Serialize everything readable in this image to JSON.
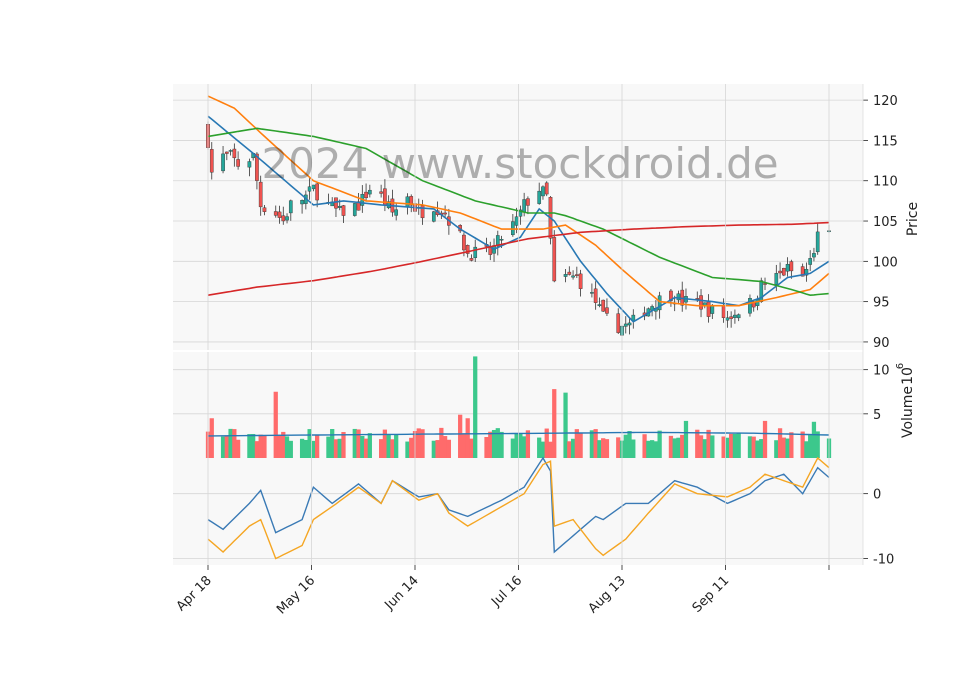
{
  "watermark": "2024 www.stockdroid.de",
  "colors": {
    "up": "#26a69a",
    "down": "#ef5350",
    "vol_up": "#3cc88c",
    "vol_down": "#ff6b6b",
    "ma_blue": "#2878b4",
    "ma_orange": "#ff7f0e",
    "ma_green": "#2ca02c",
    "ma_red": "#d62728",
    "osc_orange": "#f5a623",
    "osc_blue": "#3a7ab5",
    "panel_bg": "#f8f8f8",
    "grid": "#d6d6d6"
  },
  "chart_data": [
    {
      "type": "candlestick",
      "panel": "price",
      "ylabel": "Price",
      "ylim": [
        89,
        122
      ],
      "yticks": [
        90,
        95,
        100,
        105,
        110,
        115,
        120
      ],
      "grid": true,
      "x_start": "2024-04-18",
      "x_end": "2024-09-30",
      "xtick_labels": [
        "Apr 18",
        "May 16",
        "Jun 14",
        "Jul 16",
        "Aug 13",
        "Sep 11"
      ],
      "close_anchors": [
        [
          "2024-04-18",
          115
        ],
        [
          "2024-04-19",
          111
        ],
        [
          "2024-04-22",
          113
        ],
        [
          "2024-04-24",
          113
        ],
        [
          "2024-04-26",
          112
        ],
        [
          "2024-04-30",
          113
        ],
        [
          "2024-05-02",
          107
        ],
        [
          "2024-05-06",
          106
        ],
        [
          "2024-05-08",
          105
        ],
        [
          "2024-05-10",
          107
        ],
        [
          "2024-05-14",
          108
        ],
        [
          "2024-05-16",
          109
        ],
        [
          "2024-05-20",
          107
        ],
        [
          "2024-05-23",
          106
        ],
        [
          "2024-05-28",
          107
        ],
        [
          "2024-05-31",
          109
        ],
        [
          "2024-06-03",
          108
        ],
        [
          "2024-06-06",
          106
        ],
        [
          "2024-06-10",
          108
        ],
        [
          "2024-06-13",
          106
        ],
        [
          "2024-06-17",
          107
        ],
        [
          "2024-06-20",
          106
        ],
        [
          "2024-06-24",
          103
        ],
        [
          "2024-06-26",
          101
        ],
        [
          "2024-06-28",
          101
        ],
        [
          "2024-07-02",
          101
        ],
        [
          "2024-07-05",
          103
        ],
        [
          "2024-07-09",
          105
        ],
        [
          "2024-07-11",
          107
        ],
        [
          "2024-07-15",
          109
        ],
        [
          "2024-07-17",
          108
        ],
        [
          "2024-07-19",
          97
        ],
        [
          "2024-07-22",
          98
        ],
        [
          "2024-07-25",
          98
        ],
        [
          "2024-07-30",
          95
        ],
        [
          "2024-08-01",
          93
        ],
        [
          "2024-08-05",
          92
        ],
        [
          "2024-08-08",
          92
        ],
        [
          "2024-08-12",
          94
        ],
        [
          "2024-08-15",
          95
        ],
        [
          "2024-08-19",
          96
        ],
        [
          "2024-08-22",
          95
        ],
        [
          "2024-08-26",
          95
        ],
        [
          "2024-08-29",
          94
        ],
        [
          "2024-09-03",
          93
        ],
        [
          "2024-09-06",
          94
        ],
        [
          "2024-09-10",
          95
        ],
        [
          "2024-09-12",
          97
        ],
        [
          "2024-09-16",
          98
        ],
        [
          "2024-09-19",
          99
        ],
        [
          "2024-09-23",
          98
        ],
        [
          "2024-09-25",
          100
        ],
        [
          "2024-09-27",
          103
        ],
        [
          "2024-09-30",
          103
        ]
      ],
      "moving_averages": [
        {
          "color_key": "ma_blue",
          "points": [
            [
              "2024-04-18",
              118
            ],
            [
              "2024-05-01",
              113
            ],
            [
              "2024-05-16",
              107
            ],
            [
              "2024-05-24",
              107.5
            ],
            [
              "2024-06-03",
              107
            ],
            [
              "2024-06-17",
              106.5
            ],
            [
              "2024-06-24",
              104
            ],
            [
              "2024-07-03",
              101.5
            ],
            [
              "2024-07-10",
              103
            ],
            [
              "2024-07-15",
              106.5
            ],
            [
              "2024-07-19",
              105
            ],
            [
              "2024-07-26",
              100
            ],
            [
              "2024-08-02",
              96
            ],
            [
              "2024-08-09",
              92.5
            ],
            [
              "2024-08-20",
              95.5
            ],
            [
              "2024-08-30",
              95
            ],
            [
              "2024-09-06",
              94.5
            ],
            [
              "2024-09-12",
              95.5
            ],
            [
              "2024-09-19",
              98
            ],
            [
              "2024-09-25",
              98.5
            ],
            [
              "2024-09-30",
              100
            ]
          ]
        },
        {
          "color_key": "ma_orange",
          "points": [
            [
              "2024-04-18",
              120.5
            ],
            [
              "2024-04-25",
              119
            ],
            [
              "2024-05-03",
              115.5
            ],
            [
              "2024-05-16",
              110
            ],
            [
              "2024-05-30",
              107.5
            ],
            [
              "2024-06-14",
              107
            ],
            [
              "2024-06-24",
              106
            ],
            [
              "2024-07-05",
              104
            ],
            [
              "2024-07-16",
              104
            ],
            [
              "2024-07-22",
              104.5
            ],
            [
              "2024-07-30",
              102
            ],
            [
              "2024-08-06",
              99
            ],
            [
              "2024-08-16",
              95
            ],
            [
              "2024-08-26",
              94.5
            ],
            [
              "2024-09-06",
              94.5
            ],
            [
              "2024-09-16",
              95.5
            ],
            [
              "2024-09-25",
              96.5
            ],
            [
              "2024-09-30",
              98.5
            ]
          ]
        },
        {
          "color_key": "ma_green",
          "points": [
            [
              "2024-04-18",
              115.5
            ],
            [
              "2024-05-01",
              116.5
            ],
            [
              "2024-05-16",
              115.5
            ],
            [
              "2024-05-30",
              114
            ],
            [
              "2024-06-14",
              110
            ],
            [
              "2024-06-28",
              107.5
            ],
            [
              "2024-07-12",
              106
            ],
            [
              "2024-07-20",
              106
            ],
            [
              "2024-08-01",
              104
            ],
            [
              "2024-08-16",
              100.5
            ],
            [
              "2024-08-30",
              98
            ],
            [
              "2024-09-12",
              97.5
            ],
            [
              "2024-09-20",
              96.5
            ],
            [
              "2024-09-25",
              95.8
            ],
            [
              "2024-09-30",
              96
            ]
          ]
        },
        {
          "color_key": "ma_red",
          "points": [
            [
              "2024-04-18",
              95.8
            ],
            [
              "2024-05-01",
              96.8
            ],
            [
              "2024-05-16",
              97.6
            ],
            [
              "2024-06-01",
              98.8
            ],
            [
              "2024-06-14",
              100
            ],
            [
              "2024-06-28",
              101.4
            ],
            [
              "2024-07-12",
              102.8
            ],
            [
              "2024-07-26",
              103.6
            ],
            [
              "2024-08-09",
              104
            ],
            [
              "2024-08-23",
              104.3
            ],
            [
              "2024-09-06",
              104.5
            ],
            [
              "2024-09-20",
              104.6
            ],
            [
              "2024-09-30",
              104.8
            ]
          ]
        }
      ]
    },
    {
      "type": "bar",
      "panel": "volume",
      "ylabel": "Volume",
      "unit_exponent": "6",
      "ylim": [
        0,
        12
      ],
      "yticks": [
        5,
        10
      ],
      "spikes": [
        [
          "2024-04-19",
          4.5
        ],
        [
          "2024-05-06",
          7.5
        ],
        [
          "2024-06-24",
          4.9
        ],
        [
          "2024-06-26",
          4.5
        ],
        [
          "2024-06-28",
          11.5
        ],
        [
          "2024-07-19",
          7.8
        ],
        [
          "2024-07-22",
          7.4
        ],
        [
          "2024-08-23",
          4.2
        ],
        [
          "2024-09-13",
          4.2
        ],
        [
          "2024-09-26",
          4.1
        ]
      ],
      "baseline_level": 2.3,
      "average_line": [
        [
          "2024-04-18",
          2.5
        ],
        [
          "2024-05-15",
          2.6
        ],
        [
          "2024-06-14",
          2.7
        ],
        [
          "2024-07-16",
          2.8
        ],
        [
          "2024-08-13",
          2.9
        ],
        [
          "2024-09-11",
          2.8
        ],
        [
          "2024-09-30",
          2.6
        ]
      ]
    },
    {
      "type": "line",
      "panel": "oscillator",
      "ylim": [
        -11,
        5.5
      ],
      "yticks": [
        -10,
        0
      ],
      "series": [
        {
          "color_key": "osc_blue",
          "points": [
            [
              "2024-04-18",
              -4
            ],
            [
              "2024-04-22",
              -5.5
            ],
            [
              "2024-04-29",
              -1.5
            ],
            [
              "2024-05-02",
              0.5
            ],
            [
              "2024-05-06",
              -6
            ],
            [
              "2024-05-13",
              -4
            ],
            [
              "2024-05-16",
              1
            ],
            [
              "2024-05-21",
              -1.5
            ],
            [
              "2024-05-28",
              1.5
            ],
            [
              "2024-06-03",
              -1.5
            ],
            [
              "2024-06-06",
              2
            ],
            [
              "2024-06-13",
              -0.5
            ],
            [
              "2024-06-18",
              0
            ],
            [
              "2024-06-21",
              -2.5
            ],
            [
              "2024-06-26",
              -3.5
            ],
            [
              "2024-07-05",
              -1
            ],
            [
              "2024-07-11",
              1
            ],
            [
              "2024-07-16",
              5.5
            ],
            [
              "2024-07-18",
              3.5
            ],
            [
              "2024-07-19",
              -9
            ],
            [
              "2024-07-24",
              -6.5
            ],
            [
              "2024-07-30",
              -3.5
            ],
            [
              "2024-08-01",
              -4
            ],
            [
              "2024-08-07",
              -1.5
            ],
            [
              "2024-08-13",
              -1.5
            ],
            [
              "2024-08-20",
              2
            ],
            [
              "2024-08-26",
              1
            ],
            [
              "2024-09-03",
              -1.5
            ],
            [
              "2024-09-09",
              0
            ],
            [
              "2024-09-13",
              2
            ],
            [
              "2024-09-18",
              3
            ],
            [
              "2024-09-23",
              0
            ],
            [
              "2024-09-27",
              4
            ],
            [
              "2024-09-30",
              2.5
            ]
          ]
        },
        {
          "color_key": "osc_orange",
          "points": [
            [
              "2024-04-18",
              -7
            ],
            [
              "2024-04-22",
              -9
            ],
            [
              "2024-04-29",
              -5
            ],
            [
              "2024-05-02",
              -4
            ],
            [
              "2024-05-06",
              -10
            ],
            [
              "2024-05-13",
              -8
            ],
            [
              "2024-05-16",
              -4
            ],
            [
              "2024-05-21",
              -2
            ],
            [
              "2024-05-28",
              1
            ],
            [
              "2024-06-03",
              -1.5
            ],
            [
              "2024-06-06",
              2
            ],
            [
              "2024-06-13",
              -1
            ],
            [
              "2024-06-18",
              0
            ],
            [
              "2024-06-21",
              -3
            ],
            [
              "2024-06-26",
              -5
            ],
            [
              "2024-07-05",
              -2
            ],
            [
              "2024-07-11",
              0
            ],
            [
              "2024-07-16",
              4.5
            ],
            [
              "2024-07-18",
              5
            ],
            [
              "2024-07-19",
              -5
            ],
            [
              "2024-07-24",
              -4
            ],
            [
              "2024-07-30",
              -8.5
            ],
            [
              "2024-08-01",
              -9.5
            ],
            [
              "2024-08-07",
              -7
            ],
            [
              "2024-08-13",
              -3
            ],
            [
              "2024-08-20",
              1.5
            ],
            [
              "2024-08-26",
              0
            ],
            [
              "2024-09-03",
              -0.5
            ],
            [
              "2024-09-09",
              1
            ],
            [
              "2024-09-13",
              3
            ],
            [
              "2024-09-18",
              2
            ],
            [
              "2024-09-23",
              1
            ],
            [
              "2024-09-27",
              5.5
            ],
            [
              "2024-09-30",
              4
            ]
          ]
        }
      ]
    }
  ]
}
